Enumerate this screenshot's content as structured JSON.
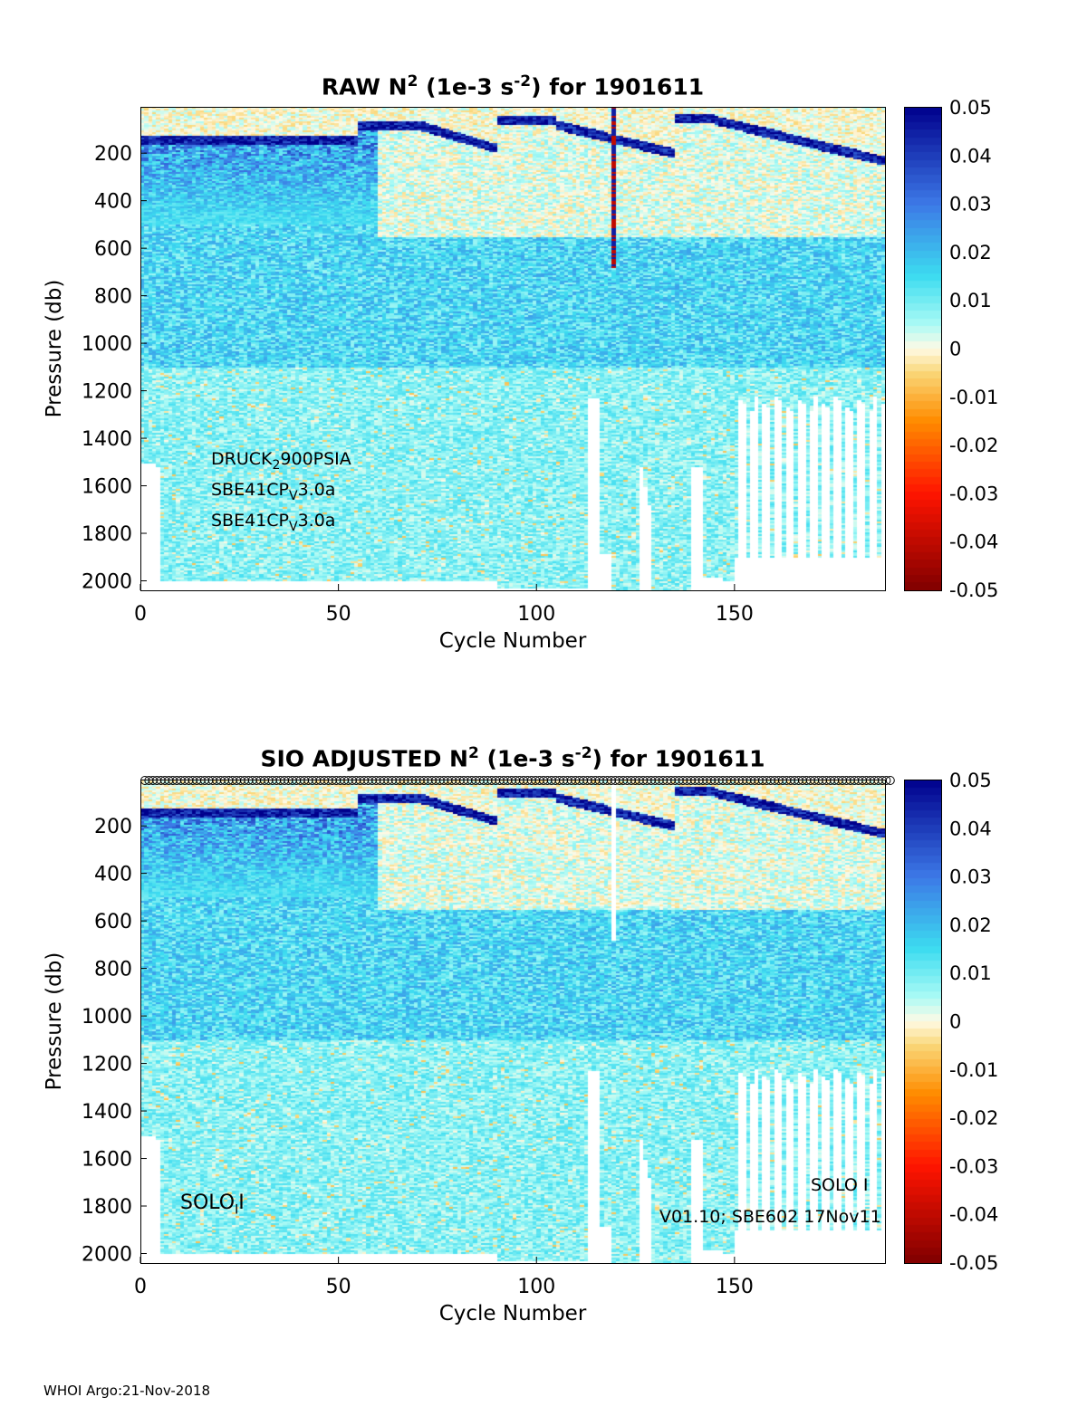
{
  "chart_data": [
    {
      "type": "heatmap",
      "title": "RAW N",
      "title_sup": "2",
      "title_units": " (1e-3 s",
      "title_units_sup": "-2",
      "title_suffix": ") for 1901611",
      "xlabel": "Cycle Number",
      "ylabel": "Pressure (db)",
      "xlim": [
        0,
        188
      ],
      "ylim": [
        2040,
        5
      ],
      "xticks": [
        "0",
        "50",
        "100",
        "150"
      ],
      "yticks": [
        "200",
        "400",
        "600",
        "800",
        "1000",
        "1200",
        "1400",
        "1600",
        "1800",
        "2000"
      ],
      "colorbar": {
        "range": [
          -0.05,
          0.05
        ],
        "ticks": [
          "0.05",
          "0.04",
          "0.03",
          "0.02",
          "0.01",
          "0",
          "-0.01",
          "-0.02",
          "-0.03",
          "-0.04",
          "-0.05"
        ],
        "colormap": "jet-like with white at 0"
      },
      "annotations": [
        {
          "main": "DRUCK",
          "sub": "2",
          "rest": "900PSIA"
        },
        {
          "main": "SBE41CP",
          "sub": "V",
          "rest": "3.0a"
        },
        {
          "main": "SBE41CP",
          "sub": "V",
          "rest": "3.0a"
        }
      ],
      "spike_cycle": 119
    },
    {
      "type": "heatmap",
      "title": "SIO  ADJUSTED N",
      "title_sup": "2",
      "title_units": " (1e-3 s",
      "title_units_sup": "-2",
      "title_suffix": ") for 1901611",
      "xlabel": "Cycle Number",
      "ylabel": "Pressure (db)",
      "xlim": [
        0,
        188
      ],
      "ylim": [
        2040,
        5
      ],
      "xticks": [
        "0",
        "50",
        "100",
        "150"
      ],
      "yticks": [
        "200",
        "400",
        "600",
        "800",
        "1000",
        "1200",
        "1400",
        "1600",
        "1800",
        "2000"
      ],
      "colorbar": {
        "range": [
          -0.05,
          0.05
        ],
        "ticks": [
          "0.05",
          "0.04",
          "0.03",
          "0.02",
          "0.01",
          "0",
          "-0.01",
          "-0.02",
          "-0.03",
          "-0.04",
          "-0.05"
        ]
      },
      "annotations_left": {
        "main": "SOLO",
        "sub": "I",
        "rest": "I"
      },
      "annotations_right": {
        "text": "V01.10; SBE602 17Nov11",
        "overlay": "SOLO I"
      },
      "qc_markers": "one circle per cycle along top"
    }
  ],
  "footer": "WHOI Argo:21-Nov-2018"
}
